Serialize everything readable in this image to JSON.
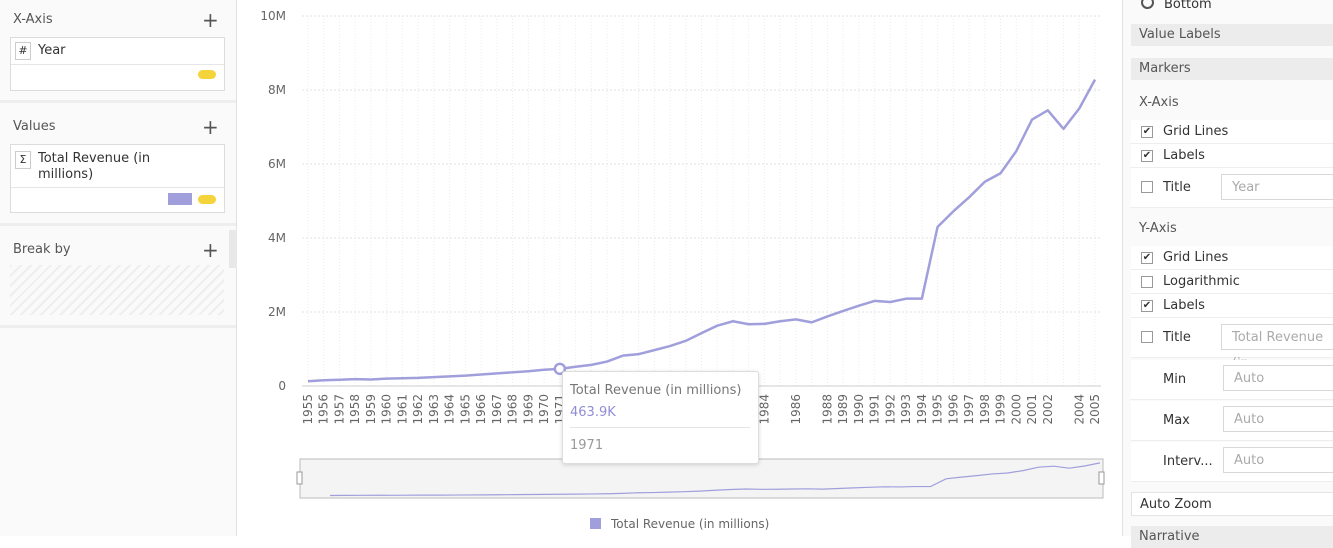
{
  "chart_data": {
    "type": "line",
    "categories": [
      "1955",
      "1956",
      "1957",
      "1958",
      "1959",
      "1960",
      "1961",
      "1962",
      "1963",
      "1964",
      "1965",
      "1966",
      "1967",
      "1968",
      "1969",
      "1970",
      "1971",
      "1972",
      "1973",
      "1974",
      "1975",
      "1976",
      "1977",
      "1978",
      "1979",
      "1980",
      "1981",
      "1982",
      "1983",
      "1984",
      null,
      "1986",
      null,
      "1988",
      "1989",
      "1990",
      "1991",
      "1992",
      "1993",
      "1994",
      "1995",
      "1996",
      "1997",
      "1998",
      "1999",
      "2000",
      "2001",
      "2002",
      null,
      "2004",
      "2005"
    ],
    "series": [
      {
        "name": "Total Revenue (in millions)",
        "color": "#a09fdc",
        "values": [
          130000,
          155000,
          170000,
          185000,
          175000,
          200000,
          210000,
          220000,
          240000,
          260000,
          280000,
          310000,
          340000,
          370000,
          400000,
          440000,
          463900,
          520000,
          570000,
          660000,
          820000,
          860000,
          970000,
          1080000,
          1220000,
          1430000,
          1630000,
          1750000,
          1670000,
          1680000,
          1750000,
          1800000,
          1720000,
          1880000,
          2030000,
          2170000,
          2300000,
          2270000,
          2360000,
          2360000,
          4300000,
          4720000,
          5100000,
          5520000,
          5750000,
          6350000,
          7200000,
          7450000,
          6950000,
          7500000,
          8280000
        ]
      }
    ],
    "ylim": [
      0,
      10000000
    ],
    "yticks": [
      0,
      {
        "value": 2000000,
        "label": "2M"
      },
      {
        "value": 4000000,
        "label": "4M"
      },
      {
        "value": 6000000,
        "label": "6M"
      },
      {
        "value": 8000000,
        "label": "8M"
      },
      {
        "value": 10000000,
        "label": "10M"
      }
    ],
    "grid": true,
    "legend": "bottom",
    "tooltip": {
      "category": "1971",
      "value_label": "463.9K"
    }
  },
  "left_panel": {
    "x_axis": {
      "title": "X-Axis",
      "field_icon": "#",
      "field": "Year"
    },
    "values": {
      "title": "Values",
      "field_icon": "Σ",
      "field": "Total Revenue (in millions)"
    },
    "break_by": {
      "title": "Break by"
    }
  },
  "right_panel": {
    "legend_option": "Bottom",
    "value_labels": "Value Labels",
    "markers": "Markers",
    "x_axis": {
      "title": "X-Axis",
      "grid_lines": "Grid Lines",
      "labels": "Labels",
      "title_label": "Title",
      "title_placeholder": "Year"
    },
    "y_axis": {
      "title": "Y-Axis",
      "grid_lines": "Grid Lines",
      "logarithmic": "Logarithmic",
      "labels": "Labels",
      "title_label": "Title",
      "title_placeholder": "Total Revenue (in",
      "min": "Min",
      "min_value": "Auto",
      "max": "Max",
      "max_value": "Auto",
      "interval": "Interv...",
      "interval_value": "Auto"
    },
    "auto_zoom": "Auto Zoom",
    "narrative": "Narrative"
  }
}
